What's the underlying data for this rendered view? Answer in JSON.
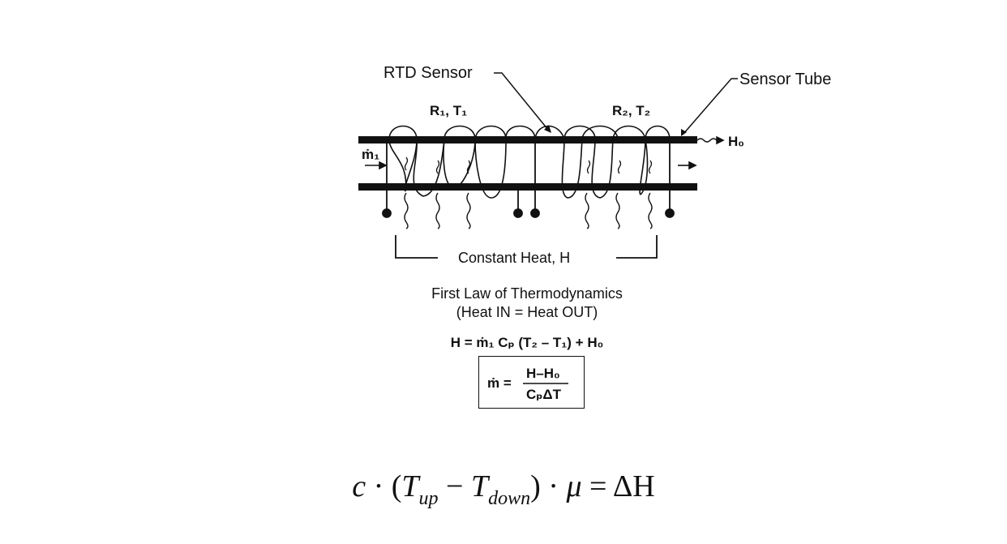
{
  "labels": {
    "rtd_sensor": "RTD Sensor",
    "sensor_tube": "Sensor Tube",
    "r1_t1": "R₁, T₁",
    "r2_t2": "R₂, T₂",
    "h0": "H₀",
    "m1": "ṁ₁",
    "constant_heat": "Constant Heat, H"
  },
  "text": {
    "law_title": "First Law of Thermodynamics",
    "law_subtitle": "(Heat IN = Heat OUT)",
    "equation_main": "H = ṁ₁ Cₚ (T₂ – T₁) + H₀"
  },
  "boxed_formula": {
    "lhs": "ṁ =",
    "numerator": "H–H₀",
    "denominator": "CₚΔT"
  },
  "bottom_formula": {
    "c": "c",
    "dot1": "·",
    "open": "(",
    "T1": "T",
    "up": "up",
    "minus": "−",
    "T2": "T",
    "down": "down",
    "close": ")",
    "dot2": "·",
    "mu": "μ",
    "eq": "=",
    "delta_h": "ΔH"
  }
}
